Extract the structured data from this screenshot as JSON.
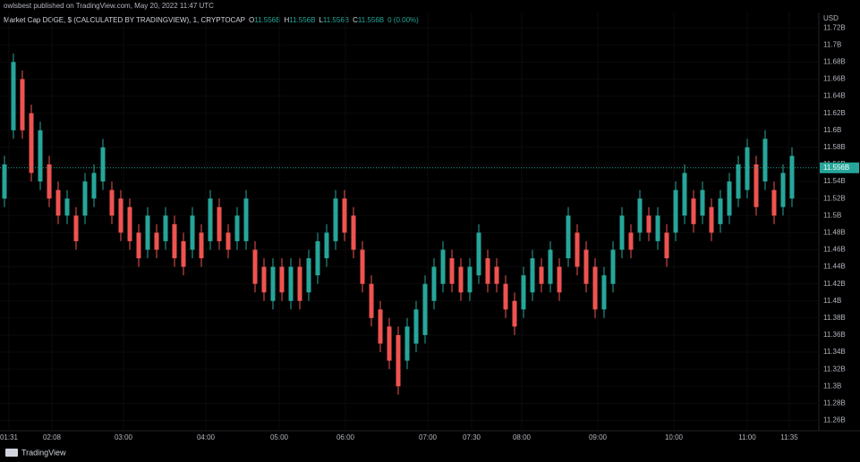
{
  "chart_data": {
    "type": "candlestick",
    "publisher_note": "owlsbest published on TradingView.com, May 20, 2022 11:47 UTC",
    "title": "Market Cap DOGE, $ (CALCULATED BY TRADINGVIEW), 1, CRYPTOCAP",
    "legend_values": [
      {
        "key": "O",
        "value": "11.556B"
      },
      {
        "key": "H",
        "value": "11.556B"
      },
      {
        "key": "L",
        "value": "11.556B"
      },
      {
        "key": "C",
        "value": "11.556B"
      }
    ],
    "change": "0 (0.00%)",
    "currency": "USD",
    "footer": "TradingView",
    "up_color": "#26a69a",
    "down_color": "#ef5350",
    "open": [
      11.52,
      11.6,
      11.66,
      11.62,
      11.54,
      11.56,
      11.53,
      11.5,
      11.5,
      11.5,
      11.52,
      11.54,
      11.53,
      11.52,
      11.51,
      11.48,
      11.46,
      11.48,
      11.47,
      11.49,
      11.47,
      11.46,
      11.48,
      11.47,
      11.51,
      11.48,
      11.47,
      11.47,
      11.46,
      11.44,
      11.4,
      11.44,
      11.4,
      11.44,
      11.41,
      11.43,
      11.45,
      11.47,
      11.52,
      11.5,
      11.46,
      11.42,
      11.39,
      11.37,
      11.36,
      11.33,
      11.35,
      11.36,
      11.4,
      11.42,
      11.45,
      11.44,
      11.41,
      11.43,
      11.45,
      11.44,
      11.42,
      11.4,
      11.39,
      11.41,
      11.44,
      11.42,
      11.44,
      11.45,
      11.48,
      11.46,
      11.44,
      11.39,
      11.42,
      11.46,
      11.48,
      11.48,
      11.5,
      11.47,
      11.48,
      11.48,
      11.5,
      11.52,
      11.5,
      11.51,
      11.49,
      11.5,
      11.52,
      11.53,
      11.56,
      11.54,
      11.53,
      11.51,
      11.52
    ],
    "high": [
      11.57,
      11.69,
      11.67,
      11.63,
      11.61,
      11.57,
      11.54,
      11.53,
      11.51,
      11.55,
      11.56,
      11.59,
      11.54,
      11.53,
      11.52,
      11.49,
      11.51,
      11.49,
      11.51,
      11.5,
      11.48,
      11.51,
      11.49,
      11.53,
      11.52,
      11.49,
      11.51,
      11.53,
      11.47,
      11.45,
      11.45,
      11.45,
      11.45,
      11.45,
      11.46,
      11.48,
      11.49,
      11.53,
      11.53,
      11.51,
      11.47,
      11.43,
      11.4,
      11.38,
      11.37,
      11.38,
      11.4,
      11.43,
      11.45,
      11.47,
      11.46,
      11.45,
      11.45,
      11.49,
      11.46,
      11.45,
      11.43,
      11.41,
      11.44,
      11.46,
      11.45,
      11.47,
      11.45,
      11.51,
      11.49,
      11.47,
      11.45,
      11.44,
      11.47,
      11.51,
      11.49,
      11.53,
      11.51,
      11.51,
      11.49,
      11.54,
      11.56,
      11.53,
      11.54,
      11.52,
      11.53,
      11.55,
      11.57,
      11.59,
      11.57,
      11.6,
      11.54,
      11.56,
      11.58
    ],
    "low": [
      11.51,
      11.59,
      11.59,
      11.54,
      11.53,
      11.51,
      11.49,
      11.49,
      11.46,
      11.49,
      11.51,
      11.53,
      11.49,
      11.47,
      11.46,
      11.44,
      11.45,
      11.45,
      11.46,
      11.44,
      11.43,
      11.45,
      11.44,
      11.46,
      11.46,
      11.45,
      11.46,
      11.46,
      11.41,
      11.4,
      11.39,
      11.4,
      11.39,
      11.39,
      11.4,
      11.42,
      11.44,
      11.46,
      11.47,
      11.45,
      11.41,
      11.37,
      11.34,
      11.32,
      11.29,
      11.32,
      11.34,
      11.35,
      11.39,
      11.41,
      11.41,
      11.4,
      11.4,
      11.42,
      11.41,
      11.41,
      11.38,
      11.36,
      11.38,
      11.4,
      11.41,
      11.41,
      11.4,
      11.44,
      11.43,
      11.41,
      11.38,
      11.38,
      11.41,
      11.45,
      11.45,
      11.47,
      11.47,
      11.46,
      11.44,
      11.47,
      11.49,
      11.48,
      11.49,
      11.47,
      11.48,
      11.49,
      11.51,
      11.52,
      11.5,
      11.53,
      11.49,
      11.5,
      11.51
    ],
    "close": [
      11.56,
      11.68,
      11.6,
      11.55,
      11.6,
      11.52,
      11.5,
      11.52,
      11.47,
      11.54,
      11.55,
      11.58,
      11.5,
      11.48,
      11.47,
      11.45,
      11.5,
      11.46,
      11.5,
      11.45,
      11.44,
      11.5,
      11.45,
      11.52,
      11.47,
      11.46,
      11.5,
      11.52,
      11.42,
      11.41,
      11.44,
      11.41,
      11.44,
      11.4,
      11.45,
      11.47,
      11.48,
      11.52,
      11.48,
      11.46,
      11.42,
      11.38,
      11.35,
      11.33,
      11.3,
      11.37,
      11.39,
      11.42,
      11.44,
      11.46,
      11.42,
      11.41,
      11.44,
      11.48,
      11.42,
      11.42,
      11.39,
      11.37,
      11.43,
      11.45,
      11.42,
      11.46,
      11.41,
      11.5,
      11.44,
      11.42,
      11.39,
      11.43,
      11.46,
      11.5,
      11.46,
      11.52,
      11.48,
      11.5,
      11.45,
      11.53,
      11.55,
      11.49,
      11.53,
      11.48,
      11.52,
      11.54,
      11.56,
      11.58,
      11.51,
      11.59,
      11.5,
      11.55,
      11.57
    ],
    "last_price": {
      "value": 11.556,
      "label": "11.556B"
    },
    "ylim": [
      11.25,
      11.738
    ],
    "yticks": [
      {
        "value": 11.26,
        "label": "11.26B"
      },
      {
        "value": 11.28,
        "label": "11.28B"
      },
      {
        "value": 11.3,
        "label": "11.3B"
      },
      {
        "value": 11.32,
        "label": "11.32B"
      },
      {
        "value": 11.34,
        "label": "11.34B"
      },
      {
        "value": 11.36,
        "label": "11.36B"
      },
      {
        "value": 11.38,
        "label": "11.38B"
      },
      {
        "value": 11.4,
        "label": "11.4B"
      },
      {
        "value": 11.42,
        "label": "11.42B"
      },
      {
        "value": 11.44,
        "label": "11.44B"
      },
      {
        "value": 11.46,
        "label": "11.46B"
      },
      {
        "value": 11.48,
        "label": "11.48B"
      },
      {
        "value": 11.5,
        "label": "11.5B"
      },
      {
        "value": 11.52,
        "label": "11.52B"
      },
      {
        "value": 11.54,
        "label": "11.54B"
      },
      {
        "value": 11.56,
        "label": "11.56B"
      },
      {
        "value": 11.58,
        "label": "11.58B"
      },
      {
        "value": 11.6,
        "label": "11.6B"
      },
      {
        "value": 11.62,
        "label": "11.62B"
      },
      {
        "value": 11.64,
        "label": "11.64B"
      },
      {
        "value": 11.66,
        "label": "11.66B"
      },
      {
        "value": 11.68,
        "label": "11.68B"
      },
      {
        "value": 11.7,
        "label": "11.7B"
      },
      {
        "value": 11.72,
        "label": "11.72B"
      }
    ],
    "xlim": [
      -0.5,
      91
    ],
    "xticks": [
      {
        "value": 0.5,
        "label": "01:31"
      },
      {
        "value": 5.3,
        "label": "02:08"
      },
      {
        "value": 13.3,
        "label": "03:00"
      },
      {
        "value": 22.5,
        "label": "04:00"
      },
      {
        "value": 30.7,
        "label": "05:00"
      },
      {
        "value": 38.1,
        "label": "06:00"
      },
      {
        "value": 47.3,
        "label": "07:00"
      },
      {
        "value": 52.2,
        "label": "07:30"
      },
      {
        "value": 57.8,
        "label": "08:00"
      },
      {
        "value": 66.3,
        "label": "09:00"
      },
      {
        "value": 74.8,
        "label": "10:00"
      },
      {
        "value": 83,
        "label": "11:00"
      },
      {
        "value": 87.7,
        "label": "11:35"
      }
    ]
  }
}
